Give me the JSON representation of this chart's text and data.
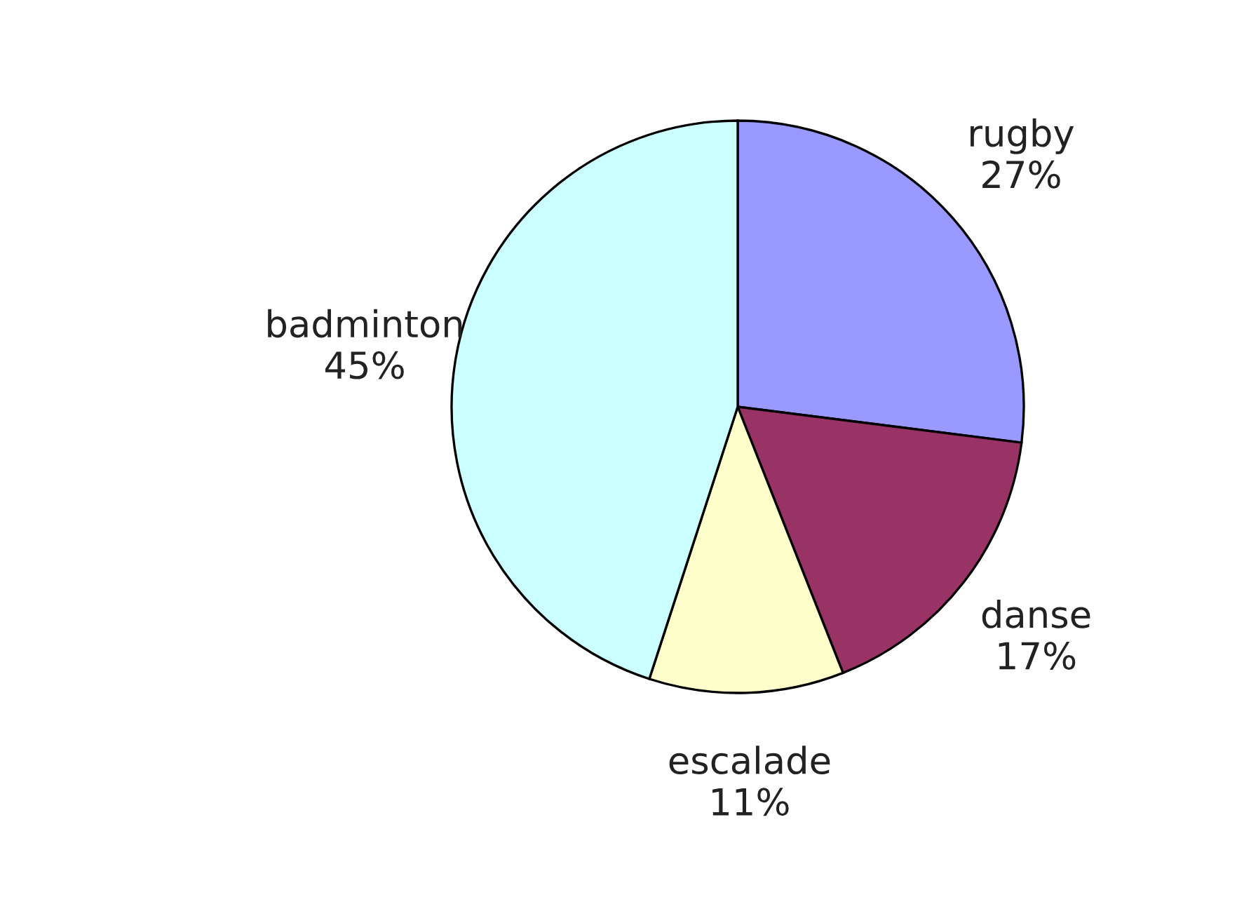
{
  "chart_data": {
    "type": "pie",
    "categories": [
      "rugby",
      "danse",
      "escalade",
      "badminton"
    ],
    "values": [
      27,
      17,
      11,
      45
    ],
    "value_labels": [
      "27%",
      "17%",
      "11%",
      "45%"
    ],
    "colors": [
      "#9999ff",
      "#993366",
      "#ffffcc",
      "#ccffff"
    ],
    "legend": false
  }
}
